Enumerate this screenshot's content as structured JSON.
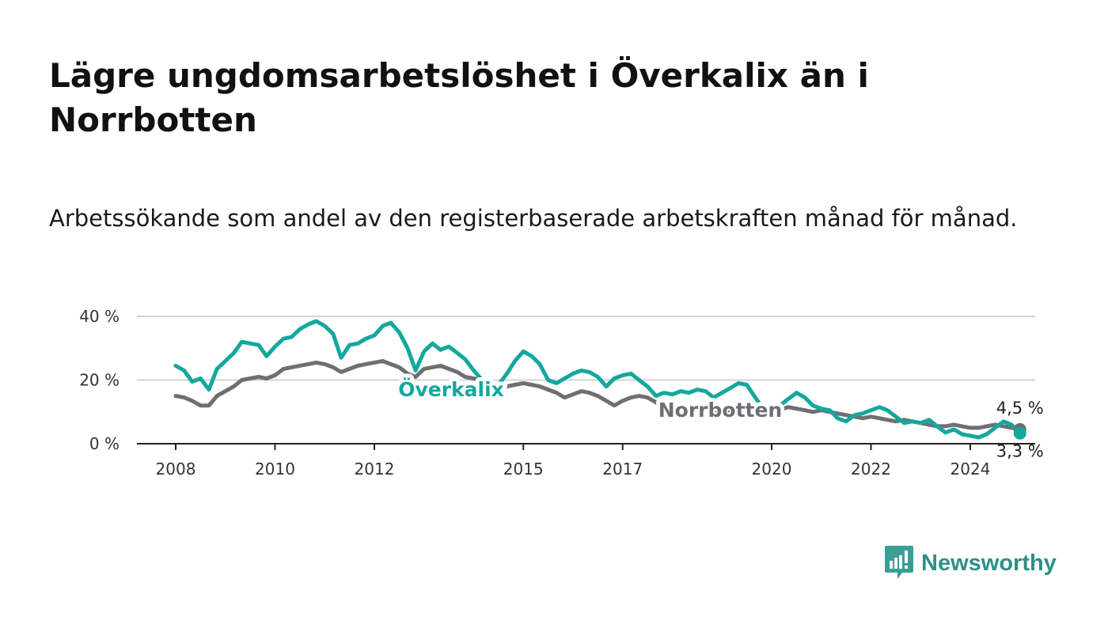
{
  "header": {
    "title": "Lägre ungdomsarbetslöshet i Överkalix än i Norrbotten",
    "subtitle": "Arbetssökande som andel av den registerbaserade arbetskraften månad för månad."
  },
  "brand": {
    "name": "Newsworthy",
    "color": "#2e8f86",
    "icon": "newsworthy-logo-icon"
  },
  "chart_data": {
    "type": "line",
    "title": "Lägre ungdomsarbetslöshet i Överkalix än i Norrbotten",
    "subtitle": "Arbetssökande som andel av den registerbaserade arbetskraften månad för månad.",
    "x_ticks": [
      "2008",
      "2010",
      "2012",
      "2015",
      "2017",
      "2020",
      "2022",
      "2024"
    ],
    "y_ticks": [
      "0 %",
      "20 %",
      "40 %"
    ],
    "xlim": [
      2007.25,
      2025.3
    ],
    "ylim": [
      0,
      40
    ],
    "grid": true,
    "series": [
      {
        "name": "Överkalix",
        "color": "#13a89e",
        "end_label": "3,3 %",
        "points": [
          [
            2008.0,
            24.5
          ],
          [
            2008.17,
            23.0
          ],
          [
            2008.33,
            19.5
          ],
          [
            2008.5,
            20.5
          ],
          [
            2008.67,
            17.0
          ],
          [
            2008.83,
            23.5
          ],
          [
            2009.0,
            26.0
          ],
          [
            2009.17,
            28.5
          ],
          [
            2009.33,
            32.0
          ],
          [
            2009.5,
            31.5
          ],
          [
            2009.67,
            31.0
          ],
          [
            2009.83,
            27.5
          ],
          [
            2010.0,
            30.5
          ],
          [
            2010.17,
            33.0
          ],
          [
            2010.33,
            33.5
          ],
          [
            2010.5,
            36.0
          ],
          [
            2010.67,
            37.5
          ],
          [
            2010.83,
            38.5
          ],
          [
            2011.0,
            37.0
          ],
          [
            2011.17,
            34.5
          ],
          [
            2011.33,
            27.0
          ],
          [
            2011.5,
            31.0
          ],
          [
            2011.67,
            31.5
          ],
          [
            2011.83,
            33.0
          ],
          [
            2012.0,
            34.0
          ],
          [
            2012.17,
            37.0
          ],
          [
            2012.33,
            38.0
          ],
          [
            2012.5,
            35.0
          ],
          [
            2012.67,
            30.0
          ],
          [
            2012.83,
            23.0
          ],
          [
            2013.0,
            29.0
          ],
          [
            2013.17,
            31.5
          ],
          [
            2013.33,
            29.5
          ],
          [
            2013.5,
            30.5
          ],
          [
            2013.67,
            28.5
          ],
          [
            2013.83,
            26.5
          ],
          [
            2014.0,
            23.0
          ],
          [
            2014.17,
            20.0
          ],
          [
            2014.33,
            17.0
          ],
          [
            2014.5,
            18.5
          ],
          [
            2014.67,
            22.0
          ],
          [
            2014.83,
            26.0
          ],
          [
            2015.0,
            29.0
          ],
          [
            2015.17,
            27.5
          ],
          [
            2015.33,
            25.0
          ],
          [
            2015.5,
            20.0
          ],
          [
            2015.67,
            19.0
          ],
          [
            2015.83,
            20.5
          ],
          [
            2016.0,
            22.0
          ],
          [
            2016.17,
            23.0
          ],
          [
            2016.33,
            22.5
          ],
          [
            2016.5,
            21.0
          ],
          [
            2016.67,
            18.0
          ],
          [
            2016.83,
            20.5
          ],
          [
            2017.0,
            21.5
          ],
          [
            2017.17,
            22.0
          ],
          [
            2017.33,
            20.0
          ],
          [
            2017.5,
            18.0
          ],
          [
            2017.67,
            15.0
          ],
          [
            2017.83,
            16.0
          ],
          [
            2018.0,
            15.5
          ],
          [
            2018.17,
            16.5
          ],
          [
            2018.33,
            16.0
          ],
          [
            2018.5,
            17.0
          ],
          [
            2018.67,
            16.5
          ],
          [
            2018.83,
            14.5
          ],
          [
            2019.0,
            16.0
          ],
          [
            2019.17,
            17.5
          ],
          [
            2019.33,
            19.0
          ],
          [
            2019.5,
            18.5
          ],
          [
            2019.67,
            14.5
          ],
          [
            2019.83,
            11.0
          ],
          [
            2020.0,
            9.5
          ],
          [
            2020.17,
            12.0
          ],
          [
            2020.33,
            14.0
          ],
          [
            2020.5,
            16.0
          ],
          [
            2020.67,
            14.5
          ],
          [
            2020.83,
            12.0
          ],
          [
            2021.0,
            11.0
          ],
          [
            2021.17,
            10.5
          ],
          [
            2021.33,
            8.0
          ],
          [
            2021.5,
            7.0
          ],
          [
            2021.67,
            9.0
          ],
          [
            2021.83,
            9.5
          ],
          [
            2022.0,
            10.5
          ],
          [
            2022.17,
            11.5
          ],
          [
            2022.33,
            10.5
          ],
          [
            2022.5,
            8.5
          ],
          [
            2022.67,
            6.5
          ],
          [
            2022.83,
            7.0
          ],
          [
            2023.0,
            6.5
          ],
          [
            2023.17,
            7.5
          ],
          [
            2023.33,
            5.5
          ],
          [
            2023.5,
            3.5
          ],
          [
            2023.67,
            4.5
          ],
          [
            2023.83,
            3.0
          ],
          [
            2024.0,
            2.5
          ],
          [
            2024.17,
            2.0
          ],
          [
            2024.33,
            3.0
          ],
          [
            2024.5,
            5.0
          ],
          [
            2024.67,
            7.0
          ],
          [
            2024.83,
            6.0
          ],
          [
            2025.0,
            3.3
          ]
        ]
      },
      {
        "name": "Norrbotten",
        "color": "#6e6e73",
        "end_label": "4,5 %",
        "points": [
          [
            2008.0,
            15.0
          ],
          [
            2008.17,
            14.5
          ],
          [
            2008.33,
            13.5
          ],
          [
            2008.5,
            12.0
          ],
          [
            2008.67,
            12.0
          ],
          [
            2008.83,
            15.0
          ],
          [
            2009.0,
            16.5
          ],
          [
            2009.17,
            18.0
          ],
          [
            2009.33,
            20.0
          ],
          [
            2009.5,
            20.5
          ],
          [
            2009.67,
            21.0
          ],
          [
            2009.83,
            20.5
          ],
          [
            2010.0,
            21.5
          ],
          [
            2010.17,
            23.5
          ],
          [
            2010.33,
            24.0
          ],
          [
            2010.5,
            24.5
          ],
          [
            2010.67,
            25.0
          ],
          [
            2010.83,
            25.5
          ],
          [
            2011.0,
            25.0
          ],
          [
            2011.17,
            24.0
          ],
          [
            2011.33,
            22.5
          ],
          [
            2011.5,
            23.5
          ],
          [
            2011.67,
            24.5
          ],
          [
            2011.83,
            25.0
          ],
          [
            2012.0,
            25.5
          ],
          [
            2012.17,
            26.0
          ],
          [
            2012.33,
            25.0
          ],
          [
            2012.5,
            24.0
          ],
          [
            2012.67,
            22.0
          ],
          [
            2012.83,
            21.0
          ],
          [
            2013.0,
            23.5
          ],
          [
            2013.17,
            24.0
          ],
          [
            2013.33,
            24.5
          ],
          [
            2013.5,
            23.5
          ],
          [
            2013.67,
            22.5
          ],
          [
            2013.83,
            21.0
          ],
          [
            2014.0,
            20.5
          ],
          [
            2014.17,
            20.0
          ],
          [
            2014.33,
            19.0
          ],
          [
            2014.5,
            18.5
          ],
          [
            2014.67,
            18.0
          ],
          [
            2014.83,
            18.5
          ],
          [
            2015.0,
            19.0
          ],
          [
            2015.17,
            18.5
          ],
          [
            2015.33,
            18.0
          ],
          [
            2015.5,
            17.0
          ],
          [
            2015.67,
            16.0
          ],
          [
            2015.83,
            14.5
          ],
          [
            2016.0,
            15.5
          ],
          [
            2016.17,
            16.5
          ],
          [
            2016.33,
            16.0
          ],
          [
            2016.5,
            15.0
          ],
          [
            2016.67,
            13.5
          ],
          [
            2016.83,
            12.0
          ],
          [
            2017.0,
            13.5
          ],
          [
            2017.17,
            14.5
          ],
          [
            2017.33,
            15.0
          ],
          [
            2017.5,
            14.5
          ],
          [
            2017.67,
            13.0
          ],
          [
            2017.83,
            11.0
          ],
          [
            2018.0,
            11.5
          ],
          [
            2018.17,
            12.0
          ],
          [
            2018.33,
            11.5
          ],
          [
            2018.5,
            12.0
          ],
          [
            2018.67,
            11.0
          ],
          [
            2018.83,
            9.5
          ],
          [
            2019.0,
            10.0
          ],
          [
            2019.17,
            10.5
          ],
          [
            2019.33,
            11.0
          ],
          [
            2019.5,
            11.0
          ],
          [
            2019.67,
            10.0
          ],
          [
            2019.83,
            9.5
          ],
          [
            2020.0,
            9.0
          ],
          [
            2020.17,
            10.5
          ],
          [
            2020.33,
            11.5
          ],
          [
            2020.5,
            11.0
          ],
          [
            2020.67,
            10.5
          ],
          [
            2020.83,
            10.0
          ],
          [
            2021.0,
            10.5
          ],
          [
            2021.17,
            10.0
          ],
          [
            2021.33,
            9.5
          ],
          [
            2021.5,
            9.0
          ],
          [
            2021.67,
            8.5
          ],
          [
            2021.83,
            8.0
          ],
          [
            2022.0,
            8.5
          ],
          [
            2022.17,
            8.0
          ],
          [
            2022.33,
            7.5
          ],
          [
            2022.5,
            7.0
          ],
          [
            2022.67,
            7.5
          ],
          [
            2022.83,
            7.0
          ],
          [
            2023.0,
            6.5
          ],
          [
            2023.17,
            6.0
          ],
          [
            2023.33,
            5.5
          ],
          [
            2023.5,
            5.5
          ],
          [
            2023.67,
            6.0
          ],
          [
            2023.83,
            5.5
          ],
          [
            2024.0,
            5.0
          ],
          [
            2024.17,
            5.0
          ],
          [
            2024.33,
            5.5
          ],
          [
            2024.5,
            6.0
          ],
          [
            2024.67,
            5.5
          ],
          [
            2024.83,
            5.0
          ],
          [
            2025.0,
            4.5
          ]
        ]
      }
    ]
  }
}
